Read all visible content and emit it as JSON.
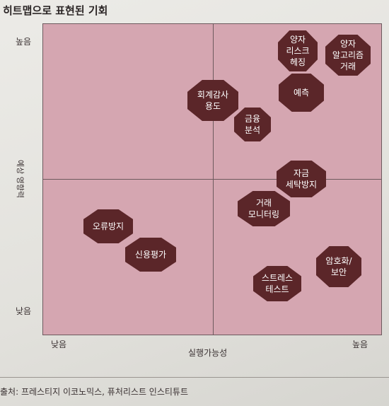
{
  "title": "히트맵으로 표현된 기회",
  "axes": {
    "y_label": "예상 영향력",
    "y_high": "높음",
    "y_low": "낮음",
    "x_label": "실행가능성",
    "x_low": "낮음",
    "x_high": "높음"
  },
  "nodes": [
    {
      "id": "quantum-risk-hedging",
      "label": "양자\n리스크\n헤징"
    },
    {
      "id": "quantum-algorithm-trading",
      "label": "양자\n알고리즘\n거래"
    },
    {
      "id": "audit-use",
      "label": "회계감사\n용도"
    },
    {
      "id": "forecast",
      "label": "예측"
    },
    {
      "id": "financial-analysis",
      "label": "금융\n분석"
    },
    {
      "id": "money-laundering-prevention",
      "label": "자금\n세탁방지"
    },
    {
      "id": "trade-monitoring",
      "label": "거래\n모니터링"
    },
    {
      "id": "error-prevention",
      "label": "오류방지"
    },
    {
      "id": "credit-rating",
      "label": "신용평가"
    },
    {
      "id": "encryption-security",
      "label": "암호화/\n보안"
    },
    {
      "id": "stress-test",
      "label": "스트레스\n테스트"
    }
  ],
  "source": "출처: 프레스티지 이코노믹스, 퓨처리스트 인스티튜트"
}
